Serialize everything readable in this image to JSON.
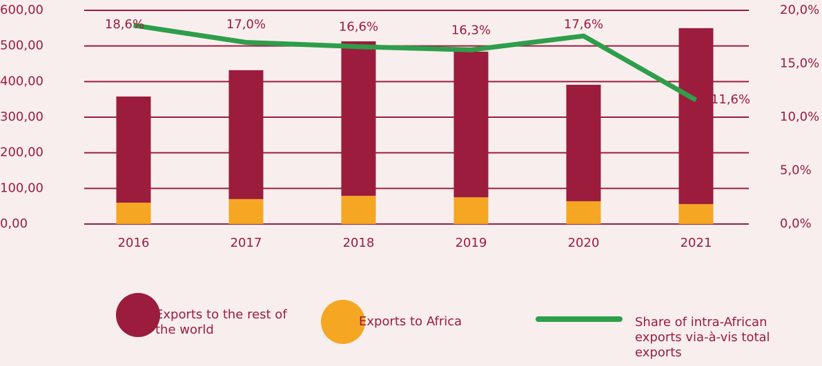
{
  "chart_data": {
    "type": "bar",
    "categories": [
      "2016",
      "2017",
      "2018",
      "2019",
      "2020",
      "2021"
    ],
    "series": [
      {
        "name": "Exports to Africa",
        "color": "#f5a623",
        "values": [
          60,
          70,
          79,
          75,
          64,
          56
        ]
      },
      {
        "name": "Exports to the rest of the world",
        "color": "#9b1c3c",
        "values": [
          298,
          362,
          434,
          409,
          327,
          494
        ]
      },
      {
        "name": "Share of intra-African exports via-à-vis total exports",
        "color": "#2e9e4a",
        "axis": "y2",
        "type": "line",
        "values": [
          18.6,
          17.0,
          16.6,
          16.3,
          17.6,
          11.6
        ],
        "value_labels": [
          "18,6%",
          "17,0%",
          "16,6%",
          "16,3%",
          "17,6%",
          "11,6%"
        ]
      }
    ],
    "ylim": [
      0,
      600
    ],
    "yticks": [
      {
        "value": 0,
        "label": "0,00"
      },
      {
        "value": 100,
        "label": "100,00"
      },
      {
        "value": 200,
        "label": "200,00"
      },
      {
        "value": 300,
        "label": "300,00"
      },
      {
        "value": 400,
        "label": "400,00"
      },
      {
        "value": 500,
        "label": "500,00"
      },
      {
        "value": 600,
        "label": "600,00"
      }
    ],
    "y2lim": [
      0,
      20
    ],
    "y2ticks": [
      {
        "value": 0,
        "label": "0,0%"
      },
      {
        "value": 5,
        "label": "5,0%"
      },
      {
        "value": 10,
        "label": "10,0%"
      },
      {
        "value": 15,
        "label": "15,0%"
      },
      {
        "value": 20,
        "label": "20,0%"
      }
    ],
    "grid": true,
    "stacked": true,
    "legend": "bottom"
  }
}
